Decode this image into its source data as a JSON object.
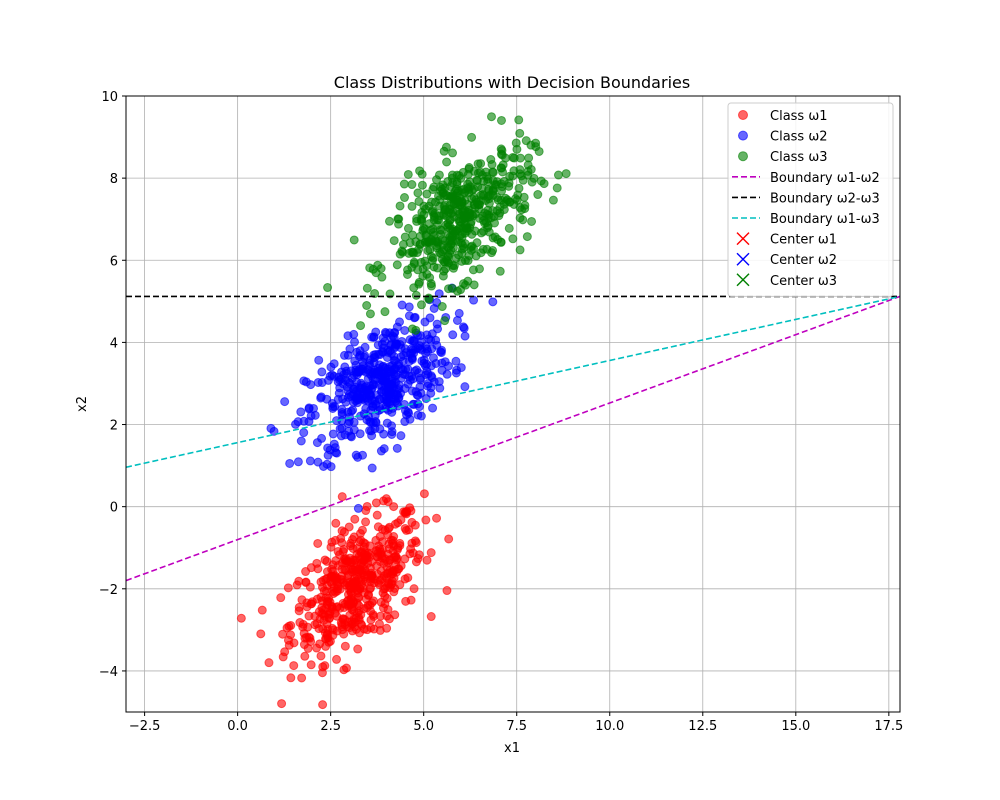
{
  "chart_data": {
    "type": "scatter",
    "title": "Class Distributions with Decision Boundaries",
    "xlabel": "x1",
    "ylabel": "x2",
    "xlim": [
      -3.0,
      17.8
    ],
    "ylim": [
      -5.0,
      10.0
    ],
    "x_ticks": [
      -2.5,
      0.0,
      2.5,
      5.0,
      7.5,
      10.0,
      12.5,
      15.0,
      17.5
    ],
    "x_tick_labels": [
      "−2.5",
      "0.0",
      "2.5",
      "5.0",
      "7.5",
      "10.0",
      "12.5",
      "15.0",
      "17.5"
    ],
    "y_ticks": [
      -4,
      -2,
      0,
      2,
      4,
      6,
      8,
      10
    ],
    "y_tick_labels": [
      "−4",
      "−2",
      "0",
      "2",
      "4",
      "6",
      "8",
      "10"
    ],
    "grid": true,
    "legend_position": "top-right",
    "series": [
      {
        "name": "Class ω1",
        "kind": "points",
        "color": "#ff0000",
        "center": [
          3.2,
          -1.9
        ],
        "x_range": [
          0.5,
          6.2
        ],
        "y_range": [
          -4.7,
          0.8
        ],
        "count": 500
      },
      {
        "name": "Class ω2",
        "kind": "points",
        "color": "#0000ff",
        "center": [
          3.8,
          3.0
        ],
        "x_range": [
          0.9,
          7.1
        ],
        "y_range": [
          0.3,
          5.6
        ],
        "count": 500
      },
      {
        "name": "Class ω3",
        "kind": "points",
        "color": "#008000",
        "center": [
          6.0,
          7.0
        ],
        "x_range": [
          2.8,
          8.9
        ],
        "y_range": [
          4.5,
          10.0
        ],
        "count": 500
      }
    ],
    "boundaries": [
      {
        "name": "Boundary ω1-ω2",
        "color": "#bf00bf",
        "points": [
          [
            -3.0,
            -1.8
          ],
          [
            17.8,
            5.12
          ]
        ]
      },
      {
        "name": "Boundary ω2-ω3",
        "color": "#000000",
        "points": [
          [
            -3.0,
            5.12
          ],
          [
            17.8,
            5.12
          ]
        ]
      },
      {
        "name": "Boundary ω1-ω3",
        "color": "#00bfbf",
        "points": [
          [
            -3.0,
            0.96
          ],
          [
            17.8,
            5.12
          ]
        ]
      }
    ],
    "centers": [
      {
        "name": "Center ω1",
        "color": "#ff0000"
      },
      {
        "name": "Center ω2",
        "color": "#0000ff"
      },
      {
        "name": "Center ω3",
        "color": "#008000"
      }
    ]
  }
}
